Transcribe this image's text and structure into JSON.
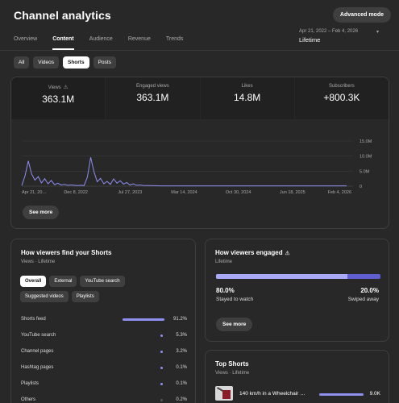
{
  "header": {
    "title": "Channel analytics",
    "advanced_mode": "Advanced mode"
  },
  "tabs": [
    {
      "label": "Overview"
    },
    {
      "label": "Content"
    },
    {
      "label": "Revenue"
    }
  ],
  "tab_labels": {
    "overview": "Overview",
    "content": "Content",
    "audience": "Audience",
    "revenue": "Revenue",
    "trends": "Trends"
  },
  "date": {
    "range": "Apr 21, 2022 – Feb 4, 2026",
    "label": "Lifetime"
  },
  "filters": {
    "all": "All",
    "videos": "Videos",
    "shorts": "Shorts",
    "posts": "Posts"
  },
  "metrics": [
    {
      "label": "Views",
      "value": "363.1M"
    },
    {
      "label": "Engaged views",
      "value": "363.1M"
    },
    {
      "label": "Likes",
      "value": "14.8M"
    },
    {
      "label": "Subscribers",
      "value": "+800.3K"
    }
  ],
  "chart_data": {
    "type": "line",
    "x_ticks": [
      "Apr 21, 20…",
      "Dec 8, 2022",
      "Jul 27, 2023",
      "Mar 14, 2024",
      "Oct 30, 2024",
      "Jun 18, 2025",
      "Feb 4, 2026"
    ],
    "y_ticks": [
      "15.0M",
      "10.0M",
      "5.0M",
      "0"
    ],
    "ylim": [
      0,
      15000000
    ],
    "grid": true,
    "series": [
      {
        "values": [
          0.2,
          3.5,
          8.4,
          4.1,
          2.0,
          3.2,
          1.1,
          2.5,
          0.8,
          1.9,
          0.5,
          1.0,
          0.4,
          0.6,
          0.3,
          0.4,
          0.3,
          0.2,
          0.3,
          0.2,
          3.0,
          9.6,
          4.8,
          1.5,
          2.6,
          0.8,
          1.6,
          0.6,
          2.4,
          1.0,
          1.8,
          0.7,
          1.2,
          0.4,
          0.8,
          0.3,
          0.4,
          0.25,
          0.2,
          0.2,
          0.15,
          0.15,
          0.12,
          0.12,
          0.1,
          0.1,
          0.1,
          0.1,
          0.1,
          0.1,
          0.1,
          0.1,
          0.1,
          0.1,
          0.1,
          0.1,
          0.1,
          0.1,
          0.1,
          0.1,
          0.1,
          0.1,
          0.1,
          0.1,
          0.1,
          0.1,
          0.1,
          0.1,
          0.1,
          0.1,
          0.1,
          0.1,
          0.1,
          0.1,
          0.1,
          0.1,
          0.1,
          0.1,
          0.1,
          0.1,
          0.1,
          0.1,
          0.1,
          0.1,
          0.1,
          0.1,
          0.1,
          0.1,
          0.1,
          0.1,
          0.1,
          0.1,
          0.1,
          0.1,
          0.1,
          0.1,
          0.1,
          0.1,
          0.1,
          0.1
        ],
        "color": "#8f8ff0"
      }
    ]
  },
  "main_card": {
    "see_more": "See more"
  },
  "sources": {
    "title": "How viewers find your Shorts",
    "subtitle": "Views · Lifetime",
    "chips": [
      "Overall",
      "External",
      "YouTube search",
      "Suggested videos",
      "Playlists"
    ],
    "rows": [
      {
        "label": "Shorts feed",
        "pct": "91.2%",
        "value": 91.2
      },
      {
        "label": "YouTube search",
        "pct": "5.3%",
        "value": 5.3
      },
      {
        "label": "Channel pages",
        "pct": "3.2%",
        "value": 3.2
      },
      {
        "label": "Hashtag pages",
        "pct": "0.1%",
        "value": 0.1
      },
      {
        "label": "Playlists",
        "pct": "0.1%",
        "value": 0.1
      },
      {
        "label": "Others",
        "pct": "0.2%",
        "value": 0.2
      }
    ]
  },
  "engaged": {
    "title": "How viewers engaged",
    "subtitle": "Lifetime",
    "stayed_pct": "80.0%",
    "stayed_label": "Stayed to watch",
    "stayed_value": 80.0,
    "swiped_pct": "20.0%",
    "swiped_label": "Swiped away",
    "see_more": "See more"
  },
  "top_shorts": {
    "title": "Top Shorts",
    "subtitle": "Views · Lifetime",
    "items": [
      {
        "title": "140 km/h in a Wheelchair …",
        "value": "9.0K"
      }
    ]
  },
  "colors": {
    "accent": "#8f8ff0",
    "bg": "#282828"
  }
}
